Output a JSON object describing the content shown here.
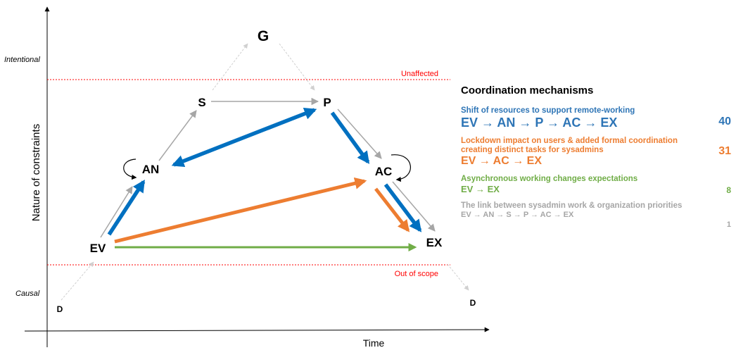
{
  "axes": {
    "y_label": "Nature of constraints",
    "x_label": "Time",
    "level_intentional": "Intentional",
    "level_causal": "Causal"
  },
  "boundaries": {
    "top": "Unaffected",
    "bottom": "Out of scope"
  },
  "nodes": {
    "G": "G",
    "S": "S",
    "P": "P",
    "AN": "AN",
    "AC": "AC",
    "EV": "EV",
    "EX": "EX",
    "D_left": "D",
    "D_right": "D"
  },
  "legend": {
    "title": "Coordination mechanisms",
    "mechanisms": [
      {
        "description": "Shift of resources to support remote-working",
        "path": "EV → AN → P → AC → EX",
        "count": "40",
        "color": "#2e75b6"
      },
      {
        "description": "Lockdown impact on users & added formal coordination creating distinct tasks for sysadmins",
        "path": "EV → AC → EX",
        "count": "31",
        "color": "#ed7d31"
      },
      {
        "description": "Asynchronous working changes expectations",
        "path": "EV → EX",
        "count": "8",
        "color": "#70ad47"
      },
      {
        "description": "The link between sysadmin work & organization priorities",
        "path": "EV → AN → S → P → AC → EX",
        "count": "1",
        "color": "#a6a6a6"
      }
    ]
  },
  "colors": {
    "blue": "#0070c0",
    "orange": "#ed7d31",
    "green": "#70ad47",
    "gray": "#a6a6a6",
    "boundary": "#ff0000"
  }
}
